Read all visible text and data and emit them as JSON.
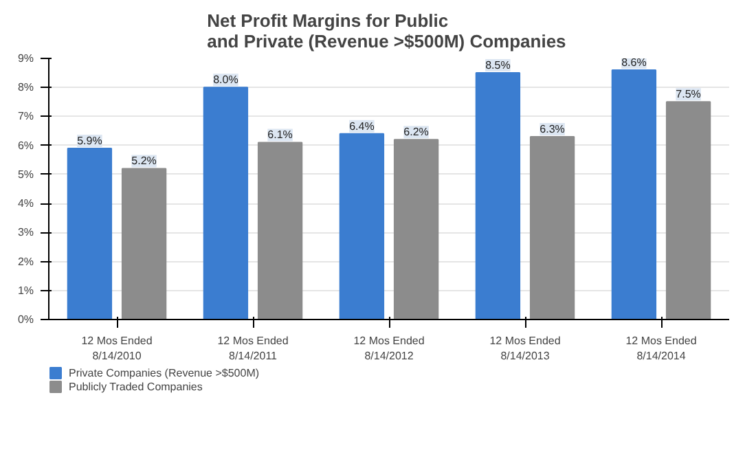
{
  "chart_data": {
    "type": "bar",
    "title": "Net Profit Margins for Public\nand Private (Revenue >$500M)  Companies",
    "categories": [
      "12 Mos Ended\n8/14/2010",
      "12 Mos Ended\n8/14/2011",
      "12 Mos Ended\n8/14/2012",
      "12 Mos Ended\n8/14/2013",
      "12 Mos Ended\n8/14/2014"
    ],
    "series": [
      {
        "name": "Private Companies (Revenue >$500M)",
        "color": "#3b7dd0",
        "values": [
          5.9,
          8.0,
          6.4,
          8.5,
          8.6
        ],
        "value_labels": [
          "5.9%",
          "8.0%",
          "6.4%",
          "8.5%",
          "8.6%"
        ]
      },
      {
        "name": "Publicly Traded Companies",
        "color": "#8c8c8c",
        "values": [
          5.2,
          6.1,
          6.2,
          6.3,
          7.5
        ],
        "value_labels": [
          "5.2%",
          "6.1%",
          "6.2%",
          "6.3%",
          "7.5%"
        ]
      }
    ],
    "ylim": [
      0,
      9
    ],
    "yticks": [
      {
        "value": 0,
        "label": "0%"
      },
      {
        "value": 1,
        "label": "1%"
      },
      {
        "value": 2,
        "label": "2%"
      },
      {
        "value": 3,
        "label": "3%"
      },
      {
        "value": 4,
        "label": "4%"
      },
      {
        "value": 5,
        "label": "5%"
      },
      {
        "value": 6,
        "label": "6%"
      },
      {
        "value": 7,
        "label": "7%"
      },
      {
        "value": 8,
        "label": "8%"
      },
      {
        "value": 9,
        "label": "9%"
      }
    ],
    "grid": "y",
    "legend": "bottom left"
  }
}
